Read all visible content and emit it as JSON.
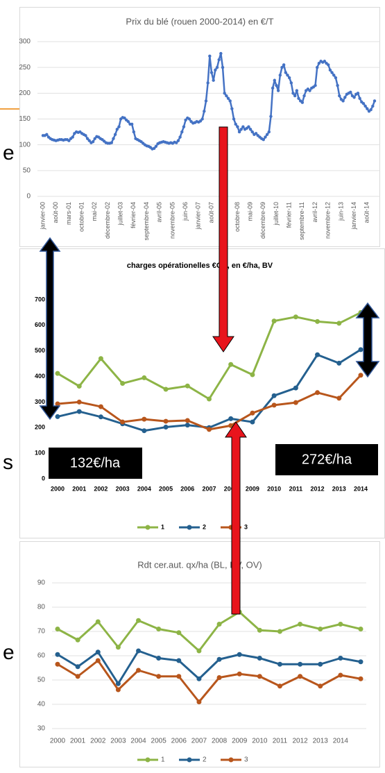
{
  "fragments": [
    "e",
    "s",
    "e"
  ],
  "chart_data": [
    {
      "type": "line",
      "title": "Prix du blé (rouen 2000-2014) en €/T",
      "color": "#4472c4",
      "grid": true,
      "ylim": [
        0,
        300
      ],
      "yticks": [
        0,
        50,
        100,
        150,
        200,
        250,
        300
      ],
      "categories": [
        "janvier-00",
        null,
        null,
        null,
        null,
        null,
        null,
        "août-00",
        null,
        null,
        null,
        null,
        null,
        null,
        "mars-01",
        null,
        null,
        null,
        null,
        null,
        null,
        "octobre-01",
        null,
        null,
        null,
        null,
        null,
        null,
        "mai-02",
        null,
        null,
        null,
        null,
        null,
        null,
        "décembre-02",
        null,
        null,
        null,
        null,
        null,
        null,
        "juillet-03",
        null,
        null,
        null,
        null,
        null,
        null,
        "février-04",
        null,
        null,
        null,
        null,
        null,
        null,
        "septembre-04",
        null,
        null,
        null,
        null,
        null,
        null,
        "avril-05",
        null,
        null,
        null,
        null,
        null,
        null,
        "novembre-05",
        null,
        null,
        null,
        null,
        null,
        null,
        "juin-06",
        null,
        null,
        null,
        null,
        null,
        null,
        "janvier-07",
        null,
        null,
        null,
        null,
        null,
        null,
        "août-07",
        null,
        null,
        null,
        null,
        null,
        null,
        "mars-08",
        null,
        null,
        null,
        null,
        null,
        null,
        "octobre-08",
        null,
        null,
        null,
        null,
        null,
        null,
        "mai-09",
        null,
        null,
        null,
        null,
        null,
        null,
        "décembre-09",
        null,
        null,
        null,
        null,
        null,
        null,
        "juillet-10",
        null,
        null,
        null,
        null,
        null,
        null,
        "février-11",
        null,
        null,
        null,
        null,
        null,
        null,
        "septembre-11",
        null,
        null,
        null,
        null,
        null,
        null,
        "avril-12",
        null,
        null,
        null,
        null,
        null,
        null,
        "novembre-12",
        null,
        null,
        null,
        null,
        null,
        null,
        "juin-13",
        null,
        null,
        null,
        null,
        null,
        null,
        "janvier-14",
        null,
        null,
        null,
        null,
        null,
        null,
        "août-14",
        null,
        null,
        null,
        null
      ],
      "values": [
        118,
        118,
        120,
        115,
        112,
        110,
        109,
        108,
        109,
        110,
        110,
        109,
        110,
        110,
        108,
        112,
        115,
        122,
        125,
        124,
        125,
        122,
        120,
        118,
        112,
        108,
        104,
        106,
        112,
        116,
        115,
        112,
        110,
        107,
        104,
        103,
        103,
        104,
        112,
        120,
        130,
        135,
        150,
        153,
        152,
        148,
        145,
        140,
        140,
        125,
        112,
        110,
        108,
        106,
        103,
        100,
        98,
        97,
        95,
        92,
        93,
        97,
        102,
        104,
        105,
        106,
        105,
        104,
        103,
        104,
        103,
        105,
        104,
        108,
        115,
        125,
        135,
        148,
        152,
        150,
        145,
        142,
        143,
        145,
        144,
        146,
        150,
        165,
        185,
        220,
        272,
        240,
        225,
        245,
        250,
        265,
        277,
        250,
        200,
        195,
        190,
        185,
        170,
        150,
        140,
        135,
        125,
        130,
        135,
        130,
        132,
        135,
        130,
        125,
        120,
        122,
        118,
        115,
        112,
        110,
        115,
        120,
        125,
        155,
        210,
        225,
        215,
        205,
        235,
        250,
        255,
        240,
        235,
        230,
        220,
        200,
        195,
        205,
        190,
        185,
        182,
        195,
        205,
        208,
        205,
        210,
        212,
        215,
        250,
        258,
        262,
        260,
        262,
        258,
        255,
        245,
        240,
        235,
        230,
        215,
        195,
        188,
        185,
        192,
        198,
        200,
        202,
        195,
        192,
        198,
        200,
        190,
        183,
        180,
        175,
        170,
        165,
        168,
        175,
        185
      ]
    },
    {
      "type": "line",
      "title": "charges opérationelles €CU,  en €/ha, BV",
      "grid": false,
      "ylim": [
        0,
        700
      ],
      "yticks": [
        0,
        100,
        200,
        300,
        400,
        500,
        600,
        700
      ],
      "categories": [
        "2000",
        "2001",
        "2002",
        "2003",
        "2004",
        "2005",
        "2006",
        "2007",
        "2008",
        "2009",
        "2010",
        "2011",
        "2012",
        "2013",
        "2014"
      ],
      "series": [
        {
          "name": "1",
          "color": "#8db446",
          "values": [
            412,
            362,
            470,
            373,
            395,
            350,
            363,
            312,
            447,
            407,
            617,
            633,
            615,
            608,
            650
          ]
        },
        {
          "name": "2",
          "color": "#24608f",
          "values": [
            243,
            263,
            242,
            215,
            188,
            202,
            210,
            200,
            235,
            222,
            325,
            355,
            485,
            452,
            505
          ]
        },
        {
          "name": "3",
          "color": "#b8561c",
          "values": [
            293,
            300,
            282,
            222,
            233,
            225,
            228,
            193,
            208,
            257,
            288,
            298,
            337,
            315,
            405
          ]
        }
      ],
      "annotations": [
        "132€/ha",
        "272€/ha"
      ]
    },
    {
      "type": "line",
      "title": "Rdt cer.aut. qx/ha (BL, BV, OV)",
      "grid": true,
      "ylim": [
        30,
        90
      ],
      "yticks": [
        30,
        40,
        50,
        60,
        70,
        80,
        90
      ],
      "categories": [
        "2000",
        "2001",
        "2002",
        "2003",
        "2004",
        "2005",
        "2006",
        "2007",
        "2008",
        "2009",
        "2010",
        "2011",
        "2012",
        "2013",
        "2014",
        null
      ],
      "series": [
        {
          "name": "1",
          "color": "#8db446",
          "values": [
            71,
            66.5,
            74,
            63.5,
            74.5,
            71,
            69.5,
            62,
            73,
            78,
            70.5,
            70,
            73,
            71,
            73,
            71
          ]
        },
        {
          "name": "2",
          "color": "#24608f",
          "values": [
            60.5,
            55.5,
            61.5,
            48.5,
            62,
            59,
            58,
            50.5,
            58.5,
            60.5,
            59,
            56.5,
            56.5,
            56.5,
            59,
            57.5
          ]
        },
        {
          "name": "3",
          "color": "#b8561c",
          "values": [
            56.5,
            51.5,
            58,
            46,
            54,
            51.5,
            51.5,
            41,
            51,
            52.5,
            51.5,
            47.5,
            51.5,
            47.5,
            52,
            50.5
          ]
        }
      ]
    }
  ]
}
